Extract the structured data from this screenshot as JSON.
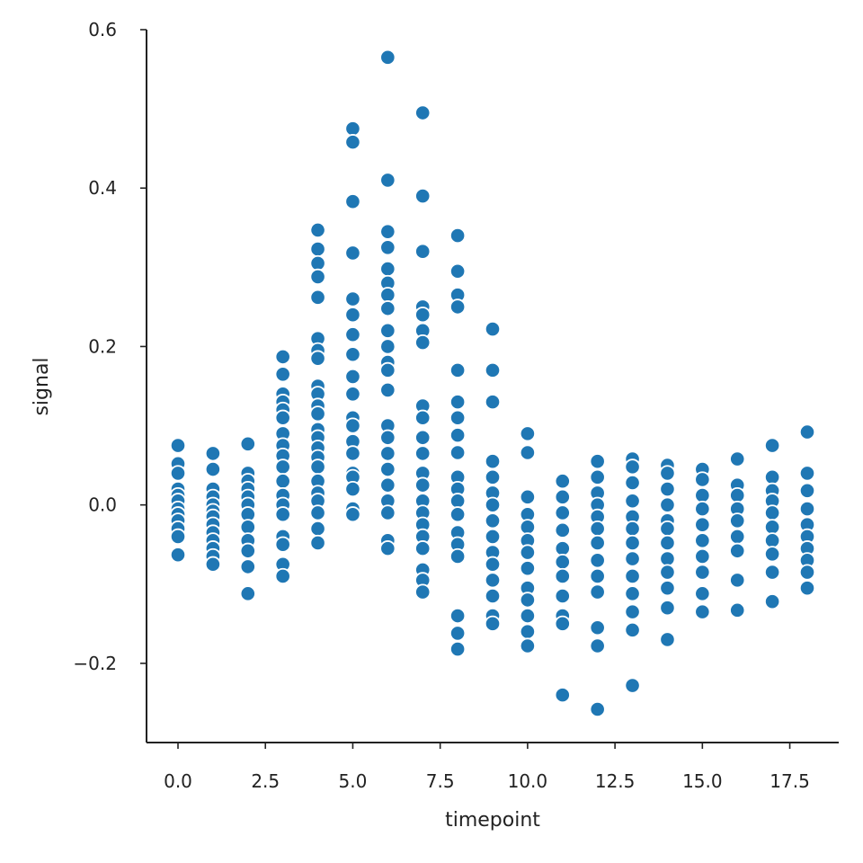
{
  "chart_data": {
    "type": "scatter",
    "title": "",
    "xlabel": "timepoint",
    "ylabel": "signal",
    "xlim": [
      -0.9,
      18.9
    ],
    "ylim": [
      -0.3,
      0.6
    ],
    "xticks": [
      0.0,
      2.5,
      5.0,
      7.5,
      10.0,
      12.5,
      15.0,
      17.5
    ],
    "xtick_labels": [
      "0.0",
      "2.5",
      "5.0",
      "7.5",
      "10.0",
      "12.5",
      "15.0",
      "17.5"
    ],
    "yticks": [
      -0.2,
      0.0,
      0.2,
      0.4,
      0.6
    ],
    "ytick_labels": [
      "−0.2",
      "0.0",
      "0.2",
      "0.4",
      "0.6"
    ],
    "grid": false,
    "marker_color": "#1f77b4",
    "series": [
      {
        "points": [
          {
            "x": 0,
            "y": 0.075
          },
          {
            "x": 0,
            "y": 0.052
          },
          {
            "x": 0,
            "y": 0.04
          },
          {
            "x": 0,
            "y": 0.02
          },
          {
            "x": 0,
            "y": 0.012
          },
          {
            "x": 0,
            "y": 0.005
          },
          {
            "x": 0,
            "y": -0.005
          },
          {
            "x": 0,
            "y": -0.012
          },
          {
            "x": 0,
            "y": -0.02
          },
          {
            "x": 0,
            "y": -0.03
          },
          {
            "x": 0,
            "y": -0.04
          },
          {
            "x": 0,
            "y": -0.063
          },
          {
            "x": 1,
            "y": 0.065
          },
          {
            "x": 1,
            "y": 0.045
          },
          {
            "x": 1,
            "y": 0.02
          },
          {
            "x": 1,
            "y": 0.01
          },
          {
            "x": 1,
            "y": 0.0
          },
          {
            "x": 1,
            "y": -0.008
          },
          {
            "x": 1,
            "y": -0.015
          },
          {
            "x": 1,
            "y": -0.025
          },
          {
            "x": 1,
            "y": -0.035
          },
          {
            "x": 1,
            "y": -0.045
          },
          {
            "x": 1,
            "y": -0.055
          },
          {
            "x": 1,
            "y": -0.065
          },
          {
            "x": 1,
            "y": -0.075
          },
          {
            "x": 2,
            "y": 0.077
          },
          {
            "x": 2,
            "y": 0.04
          },
          {
            "x": 2,
            "y": 0.03
          },
          {
            "x": 2,
            "y": 0.02
          },
          {
            "x": 2,
            "y": 0.01
          },
          {
            "x": 2,
            "y": 0.0
          },
          {
            "x": 2,
            "y": -0.012
          },
          {
            "x": 2,
            "y": -0.028
          },
          {
            "x": 2,
            "y": -0.045
          },
          {
            "x": 2,
            "y": -0.058
          },
          {
            "x": 2,
            "y": -0.078
          },
          {
            "x": 2,
            "y": -0.112
          },
          {
            "x": 3,
            "y": 0.187
          },
          {
            "x": 3,
            "y": 0.165
          },
          {
            "x": 3,
            "y": 0.14
          },
          {
            "x": 3,
            "y": 0.13
          },
          {
            "x": 3,
            "y": 0.12
          },
          {
            "x": 3,
            "y": 0.11
          },
          {
            "x": 3,
            "y": 0.09
          },
          {
            "x": 3,
            "y": 0.075
          },
          {
            "x": 3,
            "y": 0.062
          },
          {
            "x": 3,
            "y": 0.048
          },
          {
            "x": 3,
            "y": 0.03
          },
          {
            "x": 3,
            "y": 0.012
          },
          {
            "x": 3,
            "y": 0.0
          },
          {
            "x": 3,
            "y": -0.012
          },
          {
            "x": 3,
            "y": -0.04
          },
          {
            "x": 3,
            "y": -0.05
          },
          {
            "x": 3,
            "y": -0.075
          },
          {
            "x": 3,
            "y": -0.09
          },
          {
            "x": 4,
            "y": 0.347
          },
          {
            "x": 4,
            "y": 0.323
          },
          {
            "x": 4,
            "y": 0.305
          },
          {
            "x": 4,
            "y": 0.288
          },
          {
            "x": 4,
            "y": 0.262
          },
          {
            "x": 4,
            "y": 0.21
          },
          {
            "x": 4,
            "y": 0.195
          },
          {
            "x": 4,
            "y": 0.185
          },
          {
            "x": 4,
            "y": 0.15
          },
          {
            "x": 4,
            "y": 0.14
          },
          {
            "x": 4,
            "y": 0.125
          },
          {
            "x": 4,
            "y": 0.115
          },
          {
            "x": 4,
            "y": 0.095
          },
          {
            "x": 4,
            "y": 0.085
          },
          {
            "x": 4,
            "y": 0.072
          },
          {
            "x": 4,
            "y": 0.06
          },
          {
            "x": 4,
            "y": 0.048
          },
          {
            "x": 4,
            "y": 0.03
          },
          {
            "x": 4,
            "y": 0.015
          },
          {
            "x": 4,
            "y": 0.005
          },
          {
            "x": 4,
            "y": -0.01
          },
          {
            "x": 4,
            "y": -0.03
          },
          {
            "x": 4,
            "y": -0.048
          },
          {
            "x": 5,
            "y": 0.475
          },
          {
            "x": 5,
            "y": 0.458
          },
          {
            "x": 5,
            "y": 0.383
          },
          {
            "x": 5,
            "y": 0.318
          },
          {
            "x": 5,
            "y": 0.26
          },
          {
            "x": 5,
            "y": 0.24
          },
          {
            "x": 5,
            "y": 0.215
          },
          {
            "x": 5,
            "y": 0.19
          },
          {
            "x": 5,
            "y": 0.162
          },
          {
            "x": 5,
            "y": 0.14
          },
          {
            "x": 5,
            "y": 0.11
          },
          {
            "x": 5,
            "y": 0.1
          },
          {
            "x": 5,
            "y": 0.08
          },
          {
            "x": 5,
            "y": 0.065
          },
          {
            "x": 5,
            "y": 0.04
          },
          {
            "x": 5,
            "y": 0.035
          },
          {
            "x": 5,
            "y": 0.02
          },
          {
            "x": 5,
            "y": -0.005
          },
          {
            "x": 5,
            "y": -0.012
          },
          {
            "x": 6,
            "y": 0.565
          },
          {
            "x": 6,
            "y": 0.41
          },
          {
            "x": 6,
            "y": 0.345
          },
          {
            "x": 6,
            "y": 0.325
          },
          {
            "x": 6,
            "y": 0.298
          },
          {
            "x": 6,
            "y": 0.28
          },
          {
            "x": 6,
            "y": 0.265
          },
          {
            "x": 6,
            "y": 0.248
          },
          {
            "x": 6,
            "y": 0.22
          },
          {
            "x": 6,
            "y": 0.2
          },
          {
            "x": 6,
            "y": 0.18
          },
          {
            "x": 6,
            "y": 0.17
          },
          {
            "x": 6,
            "y": 0.145
          },
          {
            "x": 6,
            "y": 0.1
          },
          {
            "x": 6,
            "y": 0.085
          },
          {
            "x": 6,
            "y": 0.065
          },
          {
            "x": 6,
            "y": 0.045
          },
          {
            "x": 6,
            "y": 0.025
          },
          {
            "x": 6,
            "y": 0.005
          },
          {
            "x": 6,
            "y": -0.01
          },
          {
            "x": 6,
            "y": -0.045
          },
          {
            "x": 6,
            "y": -0.055
          },
          {
            "x": 7,
            "y": 0.495
          },
          {
            "x": 7,
            "y": 0.39
          },
          {
            "x": 7,
            "y": 0.32
          },
          {
            "x": 7,
            "y": 0.25
          },
          {
            "x": 7,
            "y": 0.24
          },
          {
            "x": 7,
            "y": 0.22
          },
          {
            "x": 7,
            "y": 0.205
          },
          {
            "x": 7,
            "y": 0.125
          },
          {
            "x": 7,
            "y": 0.11
          },
          {
            "x": 7,
            "y": 0.085
          },
          {
            "x": 7,
            "y": 0.065
          },
          {
            "x": 7,
            "y": 0.04
          },
          {
            "x": 7,
            "y": 0.025
          },
          {
            "x": 7,
            "y": 0.005
          },
          {
            "x": 7,
            "y": -0.01
          },
          {
            "x": 7,
            "y": -0.025
          },
          {
            "x": 7,
            "y": -0.04
          },
          {
            "x": 7,
            "y": -0.055
          },
          {
            "x": 7,
            "y": -0.082
          },
          {
            "x": 7,
            "y": -0.095
          },
          {
            "x": 7,
            "y": -0.11
          },
          {
            "x": 8,
            "y": 0.34
          },
          {
            "x": 8,
            "y": 0.295
          },
          {
            "x": 8,
            "y": 0.265
          },
          {
            "x": 8,
            "y": 0.25
          },
          {
            "x": 8,
            "y": 0.17
          },
          {
            "x": 8,
            "y": 0.13
          },
          {
            "x": 8,
            "y": 0.11
          },
          {
            "x": 8,
            "y": 0.088
          },
          {
            "x": 8,
            "y": 0.066
          },
          {
            "x": 8,
            "y": 0.035
          },
          {
            "x": 8,
            "y": 0.02
          },
          {
            "x": 8,
            "y": 0.005
          },
          {
            "x": 8,
            "y": -0.012
          },
          {
            "x": 8,
            "y": -0.035
          },
          {
            "x": 8,
            "y": -0.05
          },
          {
            "x": 8,
            "y": -0.065
          },
          {
            "x": 8,
            "y": -0.14
          },
          {
            "x": 8,
            "y": -0.162
          },
          {
            "x": 8,
            "y": -0.182
          },
          {
            "x": 9,
            "y": 0.222
          },
          {
            "x": 9,
            "y": 0.17
          },
          {
            "x": 9,
            "y": 0.13
          },
          {
            "x": 9,
            "y": 0.055
          },
          {
            "x": 9,
            "y": 0.035
          },
          {
            "x": 9,
            "y": 0.015
          },
          {
            "x": 9,
            "y": 0.0
          },
          {
            "x": 9,
            "y": -0.02
          },
          {
            "x": 9,
            "y": -0.04
          },
          {
            "x": 9,
            "y": -0.06
          },
          {
            "x": 9,
            "y": -0.075
          },
          {
            "x": 9,
            "y": -0.095
          },
          {
            "x": 9,
            "y": -0.115
          },
          {
            "x": 9,
            "y": -0.14
          },
          {
            "x": 9,
            "y": -0.15
          },
          {
            "x": 10,
            "y": 0.09
          },
          {
            "x": 10,
            "y": 0.066
          },
          {
            "x": 10,
            "y": 0.01
          },
          {
            "x": 10,
            "y": -0.012
          },
          {
            "x": 10,
            "y": -0.028
          },
          {
            "x": 10,
            "y": -0.045
          },
          {
            "x": 10,
            "y": -0.06
          },
          {
            "x": 10,
            "y": -0.08
          },
          {
            "x": 10,
            "y": -0.105
          },
          {
            "x": 10,
            "y": -0.12
          },
          {
            "x": 10,
            "y": -0.14
          },
          {
            "x": 10,
            "y": -0.16
          },
          {
            "x": 10,
            "y": -0.178
          },
          {
            "x": 11,
            "y": 0.03
          },
          {
            "x": 11,
            "y": 0.01
          },
          {
            "x": 11,
            "y": -0.01
          },
          {
            "x": 11,
            "y": -0.032
          },
          {
            "x": 11,
            "y": -0.055
          },
          {
            "x": 11,
            "y": -0.072
          },
          {
            "x": 11,
            "y": -0.09
          },
          {
            "x": 11,
            "y": -0.115
          },
          {
            "x": 11,
            "y": -0.14
          },
          {
            "x": 11,
            "y": -0.15
          },
          {
            "x": 11,
            "y": -0.24
          },
          {
            "x": 12,
            "y": 0.055
          },
          {
            "x": 12,
            "y": 0.035
          },
          {
            "x": 12,
            "y": 0.015
          },
          {
            "x": 12,
            "y": 0.0
          },
          {
            "x": 12,
            "y": -0.015
          },
          {
            "x": 12,
            "y": -0.03
          },
          {
            "x": 12,
            "y": -0.048
          },
          {
            "x": 12,
            "y": -0.07
          },
          {
            "x": 12,
            "y": -0.09
          },
          {
            "x": 12,
            "y": -0.11
          },
          {
            "x": 12,
            "y": -0.155
          },
          {
            "x": 12,
            "y": -0.178
          },
          {
            "x": 12,
            "y": -0.258
          },
          {
            "x": 13,
            "y": 0.058
          },
          {
            "x": 13,
            "y": 0.048
          },
          {
            "x": 13,
            "y": 0.028
          },
          {
            "x": 13,
            "y": 0.005
          },
          {
            "x": 13,
            "y": -0.015
          },
          {
            "x": 13,
            "y": -0.03
          },
          {
            "x": 13,
            "y": -0.048
          },
          {
            "x": 13,
            "y": -0.068
          },
          {
            "x": 13,
            "y": -0.09
          },
          {
            "x": 13,
            "y": -0.112
          },
          {
            "x": 13,
            "y": -0.135
          },
          {
            "x": 13,
            "y": -0.158
          },
          {
            "x": 13,
            "y": -0.228
          },
          {
            "x": 14,
            "y": 0.05
          },
          {
            "x": 14,
            "y": 0.04
          },
          {
            "x": 14,
            "y": 0.02
          },
          {
            "x": 14,
            "y": 0.0
          },
          {
            "x": 14,
            "y": -0.02
          },
          {
            "x": 14,
            "y": -0.03
          },
          {
            "x": 14,
            "y": -0.048
          },
          {
            "x": 14,
            "y": -0.068
          },
          {
            "x": 14,
            "y": -0.085
          },
          {
            "x": 14,
            "y": -0.105
          },
          {
            "x": 14,
            "y": -0.13
          },
          {
            "x": 14,
            "y": -0.17
          },
          {
            "x": 15,
            "y": 0.045
          },
          {
            "x": 15,
            "y": 0.032
          },
          {
            "x": 15,
            "y": 0.012
          },
          {
            "x": 15,
            "y": -0.005
          },
          {
            "x": 15,
            "y": -0.025
          },
          {
            "x": 15,
            "y": -0.045
          },
          {
            "x": 15,
            "y": -0.065
          },
          {
            "x": 15,
            "y": -0.085
          },
          {
            "x": 15,
            "y": -0.112
          },
          {
            "x": 15,
            "y": -0.135
          },
          {
            "x": 16,
            "y": 0.058
          },
          {
            "x": 16,
            "y": 0.025
          },
          {
            "x": 16,
            "y": 0.012
          },
          {
            "x": 16,
            "y": -0.005
          },
          {
            "x": 16,
            "y": -0.02
          },
          {
            "x": 16,
            "y": -0.04
          },
          {
            "x": 16,
            "y": -0.058
          },
          {
            "x": 16,
            "y": -0.095
          },
          {
            "x": 16,
            "y": -0.133
          },
          {
            "x": 17,
            "y": 0.075
          },
          {
            "x": 17,
            "y": 0.035
          },
          {
            "x": 17,
            "y": 0.018
          },
          {
            "x": 17,
            "y": 0.005
          },
          {
            "x": 17,
            "y": -0.01
          },
          {
            "x": 17,
            "y": -0.028
          },
          {
            "x": 17,
            "y": -0.045
          },
          {
            "x": 17,
            "y": -0.062
          },
          {
            "x": 17,
            "y": -0.085
          },
          {
            "x": 17,
            "y": -0.122
          },
          {
            "x": 18,
            "y": 0.092
          },
          {
            "x": 18,
            "y": 0.04
          },
          {
            "x": 18,
            "y": 0.018
          },
          {
            "x": 18,
            "y": -0.005
          },
          {
            "x": 18,
            "y": -0.025
          },
          {
            "x": 18,
            "y": -0.04
          },
          {
            "x": 18,
            "y": -0.055
          },
          {
            "x": 18,
            "y": -0.07
          },
          {
            "x": 18,
            "y": -0.085
          },
          {
            "x": 18,
            "y": -0.105
          }
        ]
      }
    ]
  }
}
